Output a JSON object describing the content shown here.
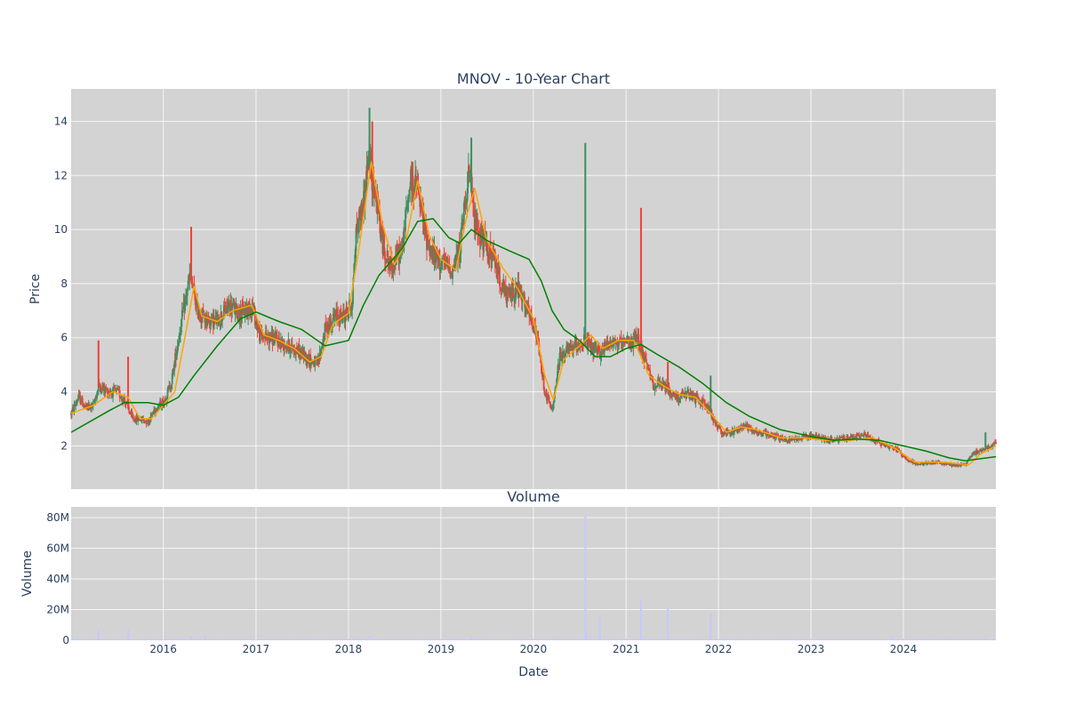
{
  "colors": {
    "plot_bg": "#d3d3d3",
    "up": "#3d8f5f",
    "down": "#ef4136",
    "ma_short": "#ffa500",
    "ma_long": "#008000",
    "volume": "#c8c8ff",
    "text": "#2a3f5f"
  },
  "chart_data": [
    {
      "type": "candlestick",
      "title": "MNOV - 10-Year Chart",
      "xlabel": "",
      "ylabel": "Price",
      "xlim": [
        "2015-01-02",
        "2024-12-31"
      ],
      "ylim": [
        0.4,
        15.2
      ],
      "yticks": [
        2,
        4,
        6,
        8,
        10,
        12,
        14
      ],
      "xticks": [
        "2016-01-01",
        "2017-01-01",
        "2018-01-01",
        "2019-01-01",
        "2020-01-01",
        "2021-01-01",
        "2022-01-01",
        "2023-01-01",
        "2024-01-01"
      ],
      "grid": true,
      "price_path": [
        [
          "2015-01-02",
          3.2
        ],
        [
          "2015-02-01",
          3.8
        ],
        [
          "2015-03-01",
          3.4
        ],
        [
          "2015-04-01",
          3.5
        ],
        [
          "2015-04-20",
          4.2
        ],
        [
          "2015-06-01",
          4.0
        ],
        [
          "2015-07-01",
          4.0
        ],
        [
          "2015-08-01",
          3.7
        ],
        [
          "2015-09-01",
          3.0
        ],
        [
          "2015-10-01",
          3.0
        ],
        [
          "2015-11-01",
          2.9
        ],
        [
          "2015-12-01",
          3.4
        ],
        [
          "2016-01-01",
          3.6
        ],
        [
          "2016-02-01",
          4.3
        ],
        [
          "2016-03-01",
          6.0
        ],
        [
          "2016-04-15",
          8.3
        ],
        [
          "2016-05-15",
          7.0
        ],
        [
          "2016-06-15",
          6.7
        ],
        [
          "2016-08-01",
          6.6
        ],
        [
          "2016-09-15",
          7.2
        ],
        [
          "2016-11-01",
          6.9
        ],
        [
          "2016-12-15",
          7.2
        ],
        [
          "2017-01-15",
          6.1
        ],
        [
          "2017-03-01",
          6.0
        ],
        [
          "2017-04-15",
          5.8
        ],
        [
          "2017-06-01",
          5.6
        ],
        [
          "2017-07-15",
          5.3
        ],
        [
          "2017-09-01",
          5.0
        ],
        [
          "2017-10-01",
          6.3
        ],
        [
          "2017-11-15",
          6.8
        ],
        [
          "2017-12-15",
          6.8
        ],
        [
          "2018-01-15",
          7.3
        ],
        [
          "2018-02-01",
          10.0
        ],
        [
          "2018-03-01",
          11.0
        ],
        [
          "2018-03-20",
          12.6
        ],
        [
          "2018-04-15",
          11.5
        ],
        [
          "2018-05-15",
          9.5
        ],
        [
          "2018-06-15",
          8.6
        ],
        [
          "2018-08-01",
          9.3
        ],
        [
          "2018-09-01",
          11.8
        ],
        [
          "2018-10-01",
          11.5
        ],
        [
          "2018-11-01",
          9.8
        ],
        [
          "2018-12-01",
          9.0
        ],
        [
          "2019-01-01",
          8.8
        ],
        [
          "2019-02-15",
          8.5
        ],
        [
          "2019-03-15",
          9.2
        ],
        [
          "2019-04-20",
          12.2
        ],
        [
          "2019-05-15",
          10.3
        ],
        [
          "2019-06-15",
          9.6
        ],
        [
          "2019-08-01",
          8.8
        ],
        [
          "2019-09-15",
          7.5
        ],
        [
          "2019-11-01",
          7.8
        ],
        [
          "2019-12-15",
          6.8
        ],
        [
          "2020-01-15",
          6.0
        ],
        [
          "2020-02-15",
          4.0
        ],
        [
          "2020-03-15",
          3.3
        ],
        [
          "2020-04-15",
          5.3
        ],
        [
          "2020-05-15",
          5.5
        ],
        [
          "2020-06-15",
          5.7
        ],
        [
          "2020-07-20",
          5.9
        ],
        [
          "2020-08-15",
          5.6
        ],
        [
          "2020-09-15",
          5.4
        ],
        [
          "2020-11-01",
          5.9
        ],
        [
          "2020-12-15",
          5.7
        ],
        [
          "2021-01-15",
          5.8
        ],
        [
          "2021-02-15",
          6.0
        ],
        [
          "2021-03-15",
          5.2
        ],
        [
          "2021-04-15",
          4.3
        ],
        [
          "2021-06-01",
          4.2
        ],
        [
          "2021-07-15",
          3.8
        ],
        [
          "2021-09-01",
          3.9
        ],
        [
          "2021-10-15",
          3.7
        ],
        [
          "2021-11-15",
          3.5
        ],
        [
          "2021-12-15",
          2.9
        ],
        [
          "2022-01-15",
          2.5
        ],
        [
          "2022-03-01",
          2.5
        ],
        [
          "2022-04-15",
          2.8
        ],
        [
          "2022-06-01",
          2.5
        ],
        [
          "2022-08-01",
          2.4
        ],
        [
          "2022-10-01",
          2.2
        ],
        [
          "2022-11-15",
          2.3
        ],
        [
          "2022-12-15",
          2.4
        ],
        [
          "2023-02-01",
          2.3
        ],
        [
          "2023-04-01",
          2.2
        ],
        [
          "2023-06-01",
          2.3
        ],
        [
          "2023-08-01",
          2.4
        ],
        [
          "2023-10-01",
          2.1
        ],
        [
          "2023-12-01",
          1.9
        ],
        [
          "2024-01-15",
          1.5
        ],
        [
          "2024-03-01",
          1.3
        ],
        [
          "2024-05-01",
          1.4
        ],
        [
          "2024-07-01",
          1.3
        ],
        [
          "2024-09-01",
          1.3
        ],
        [
          "2024-10-01",
          1.7
        ],
        [
          "2024-11-15",
          1.9
        ],
        [
          "2024-12-31",
          2.1
        ]
      ],
      "spikes": [
        [
          "2015-04-20",
          5.9,
          "down"
        ],
        [
          "2015-08-15",
          5.3,
          "down"
        ],
        [
          "2016-04-20",
          10.1,
          "down"
        ],
        [
          "2018-03-25",
          14.5,
          "up"
        ],
        [
          "2018-04-05",
          14.0,
          "down"
        ],
        [
          "2019-05-01",
          13.4,
          "up"
        ],
        [
          "2020-07-24",
          13.2,
          "up"
        ],
        [
          "2021-03-01",
          10.8,
          "down"
        ],
        [
          "2021-06-15",
          5.1,
          "down"
        ],
        [
          "2021-12-01",
          4.6,
          "up"
        ],
        [
          "2024-11-20",
          2.5,
          "up"
        ]
      ],
      "series": [
        {
          "values": [
            [
              "2015-01-02",
              3.2
            ],
            [
              "2015-04-01",
              3.5
            ],
            [
              "2015-06-15",
              4.0
            ],
            [
              "2015-08-15",
              3.8
            ],
            [
              "2015-10-01",
              3.0
            ],
            [
              "2015-11-15",
              3.0
            ],
            [
              "2016-01-01",
              3.5
            ],
            [
              "2016-02-15",
              4.0
            ],
            [
              "2016-04-01",
              6.3
            ],
            [
              "2016-05-01",
              7.9
            ],
            [
              "2016-06-01",
              6.8
            ],
            [
              "2016-08-01",
              6.6
            ],
            [
              "2016-10-01",
              7.0
            ],
            [
              "2016-12-15",
              7.2
            ],
            [
              "2017-02-01",
              6.1
            ],
            [
              "2017-04-01",
              5.9
            ],
            [
              "2017-06-01",
              5.6
            ],
            [
              "2017-08-01",
              5.1
            ],
            [
              "2017-09-15",
              5.3
            ],
            [
              "2017-11-01",
              6.5
            ],
            [
              "2018-01-01",
              6.9
            ],
            [
              "2018-02-15",
              9.5
            ],
            [
              "2018-04-01",
              12.5
            ],
            [
              "2018-05-15",
              10.2
            ],
            [
              "2018-07-01",
              8.7
            ],
            [
              "2018-08-15",
              9.5
            ],
            [
              "2018-10-01",
              11.8
            ],
            [
              "2018-11-15",
              9.8
            ],
            [
              "2019-01-01",
              8.9
            ],
            [
              "2019-03-01",
              8.5
            ],
            [
              "2019-04-15",
              10.6
            ],
            [
              "2019-05-15",
              11.5
            ],
            [
              "2019-07-01",
              9.6
            ],
            [
              "2019-09-01",
              8.6
            ],
            [
              "2019-11-01",
              7.8
            ],
            [
              "2020-01-01",
              6.7
            ],
            [
              "2020-02-15",
              4.6
            ],
            [
              "2020-03-20",
              3.7
            ],
            [
              "2020-05-01",
              5.2
            ],
            [
              "2020-07-01",
              5.7
            ],
            [
              "2020-08-15",
              6.1
            ],
            [
              "2020-10-01",
              5.6
            ],
            [
              "2020-12-01",
              5.9
            ],
            [
              "2021-02-01",
              5.9
            ],
            [
              "2021-04-01",
              4.6
            ],
            [
              "2021-06-01",
              4.2
            ],
            [
              "2021-08-01",
              3.9
            ],
            [
              "2021-10-01",
              3.8
            ],
            [
              "2021-12-01",
              3.2
            ],
            [
              "2022-02-01",
              2.5
            ],
            [
              "2022-04-01",
              2.7
            ],
            [
              "2022-06-01",
              2.6
            ],
            [
              "2022-09-01",
              2.3
            ],
            [
              "2022-12-01",
              2.3
            ],
            [
              "2023-03-01",
              2.2
            ],
            [
              "2023-06-01",
              2.2
            ],
            [
              "2023-09-01",
              2.3
            ],
            [
              "2023-12-01",
              1.9
            ],
            [
              "2024-02-15",
              1.4
            ],
            [
              "2024-06-01",
              1.4
            ],
            [
              "2024-09-15",
              1.3
            ],
            [
              "2024-11-01",
              1.7
            ],
            [
              "2024-12-31",
              2.0
            ]
          ]
        },
        {
          "values": [
            [
              "2015-01-02",
              2.5
            ],
            [
              "2015-06-01",
              3.3
            ],
            [
              "2015-08-01",
              3.6
            ],
            [
              "2015-11-01",
              3.6
            ],
            [
              "2016-01-01",
              3.5
            ],
            [
              "2016-03-01",
              3.8
            ],
            [
              "2016-05-01",
              4.6
            ],
            [
              "2016-08-01",
              5.7
            ],
            [
              "2016-11-01",
              6.7
            ],
            [
              "2017-01-01",
              6.95
            ],
            [
              "2017-04-01",
              6.6
            ],
            [
              "2017-07-01",
              6.3
            ],
            [
              "2017-10-01",
              5.7
            ],
            [
              "2018-01-01",
              5.9
            ],
            [
              "2018-03-01",
              7.2
            ],
            [
              "2018-05-01",
              8.3
            ],
            [
              "2018-08-01",
              9.3
            ],
            [
              "2018-10-01",
              10.3
            ],
            [
              "2018-12-01",
              10.4
            ],
            [
              "2019-02-01",
              9.7
            ],
            [
              "2019-03-15",
              9.5
            ],
            [
              "2019-05-01",
              10.0
            ],
            [
              "2019-07-01",
              9.6
            ],
            [
              "2019-10-01",
              9.2
            ],
            [
              "2019-12-15",
              8.9
            ],
            [
              "2020-02-01",
              8.1
            ],
            [
              "2020-03-15",
              7.0
            ],
            [
              "2020-05-01",
              6.3
            ],
            [
              "2020-07-01",
              5.9
            ],
            [
              "2020-09-01",
              5.3
            ],
            [
              "2020-11-01",
              5.3
            ],
            [
              "2021-01-01",
              5.6
            ],
            [
              "2021-03-01",
              5.75
            ],
            [
              "2021-05-01",
              5.4
            ],
            [
              "2021-08-01",
              4.9
            ],
            [
              "2021-11-01",
              4.3
            ],
            [
              "2022-02-01",
              3.6
            ],
            [
              "2022-05-01",
              3.1
            ],
            [
              "2022-09-01",
              2.6
            ],
            [
              "2023-01-01",
              2.35
            ],
            [
              "2023-04-01",
              2.2
            ],
            [
              "2023-07-01",
              2.25
            ],
            [
              "2023-10-01",
              2.2
            ],
            [
              "2024-01-01",
              2.0
            ],
            [
              "2024-04-01",
              1.8
            ],
            [
              "2024-07-01",
              1.55
            ],
            [
              "2024-09-01",
              1.45
            ],
            [
              "2024-12-31",
              1.6
            ]
          ]
        }
      ]
    },
    {
      "type": "bar",
      "title": "Volume",
      "xlabel": "Date",
      "ylabel": "Volume",
      "xlim": [
        "2015-01-02",
        "2024-12-31"
      ],
      "ylim": [
        0,
        87000000
      ],
      "yticks": [
        0,
        20000000,
        40000000,
        60000000,
        80000000
      ],
      "ytick_labels": [
        "0",
        "20M",
        "40M",
        "60M",
        "80M"
      ],
      "xtick_labels": [
        "2016",
        "2017",
        "2018",
        "2019",
        "2020",
        "2021",
        "2022",
        "2023",
        "2024"
      ],
      "grid": true,
      "bars": [
        [
          "2015-04-20",
          6500000
        ],
        [
          "2015-08-15",
          7000000
        ],
        [
          "2016-04-20",
          2500000
        ],
        [
          "2016-06-15",
          3000000
        ],
        [
          "2018-03-25",
          2500000
        ],
        [
          "2019-05-01",
          2000000
        ],
        [
          "2020-07-24",
          82000000
        ],
        [
          "2020-07-28",
          6000000
        ],
        [
          "2020-09-20",
          16000000
        ],
        [
          "2021-03-01",
          27000000
        ],
        [
          "2021-06-15",
          21000000
        ],
        [
          "2021-12-01",
          17500000
        ],
        [
          "2023-11-20",
          2500000
        ],
        [
          "2024-11-20",
          1500000
        ]
      ],
      "baseline_volume": 800000
    }
  ]
}
